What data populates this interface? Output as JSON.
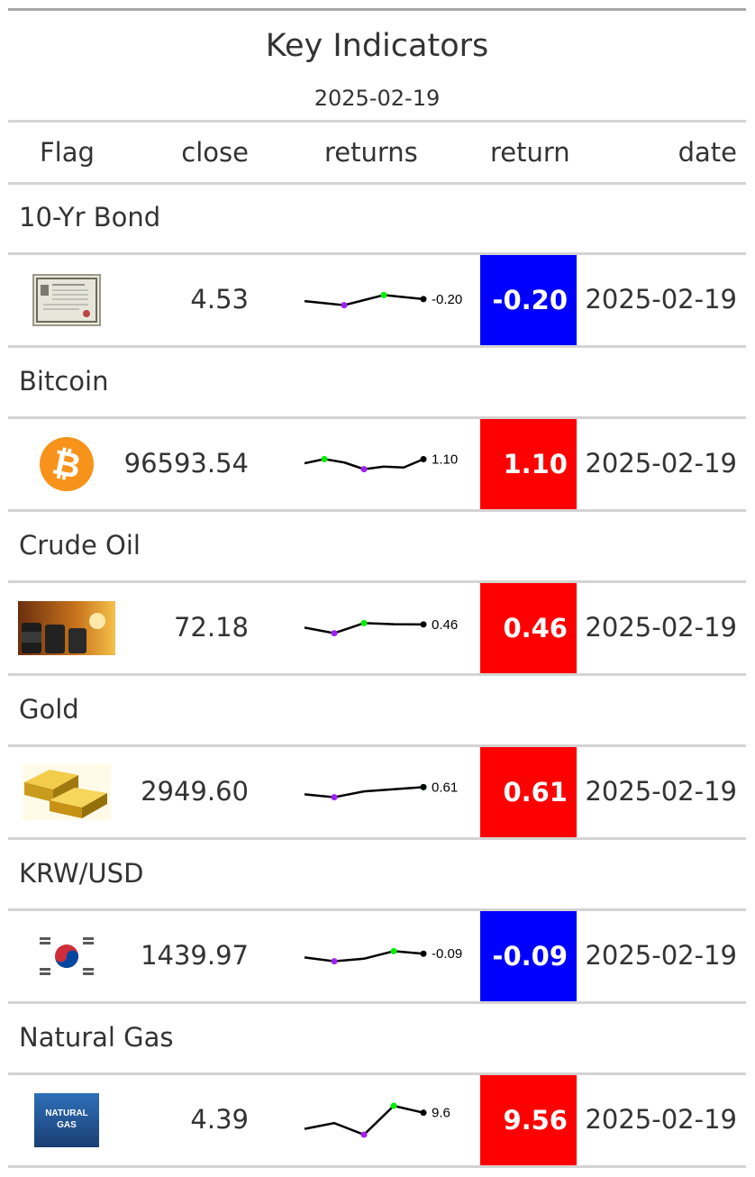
{
  "header": {
    "title": "Key Indicators",
    "subtitle": "2025-02-19"
  },
  "columns": [
    "Flag",
    "close",
    "returns",
    "return",
    "date"
  ],
  "colors": {
    "negative": "#0000ff",
    "positive": "#ff0000",
    "min_point": "#a020f0",
    "max_point": "#00ee00"
  },
  "groups": [
    {
      "label": "10-Yr Bond",
      "icon": "bond-certificate-icon",
      "close": "4.53",
      "spark": [
        4.52,
        4.5,
        4.55,
        4.53
      ],
      "spark_label": "-0.20",
      "return": "-0.20",
      "positive": false,
      "date": "2025-02-19"
    },
    {
      "label": "Bitcoin",
      "icon": "bitcoin-icon",
      "close": "96593.54",
      "spark": [
        96100,
        96600,
        96200,
        95400,
        95700,
        95600,
        96593
      ],
      "spark_label": "1.10",
      "return": "1.10",
      "positive": true,
      "date": "2025-02-19"
    },
    {
      "label": "Crude Oil",
      "icon": "oil-barrels-icon",
      "close": "72.18",
      "spark": [
        71.9,
        71.4,
        72.3,
        72.2,
        72.18
      ],
      "spark_label": "0.46",
      "return": "0.46",
      "positive": true,
      "date": "2025-02-19"
    },
    {
      "label": "Gold",
      "icon": "gold-bars-icon",
      "close": "2949.60",
      "spark": [
        2900,
        2880,
        2920,
        2935,
        2949.6
      ],
      "spark_label": "0.61",
      "return": "0.61",
      "positive": true,
      "date": "2025-02-19"
    },
    {
      "label": "KRW/USD",
      "icon": "korea-flag-icon",
      "close": "1439.97",
      "spark": [
        1437,
        1434,
        1436,
        1442,
        1439.97
      ],
      "spark_label": "-0.09",
      "return": "-0.09",
      "positive": false,
      "date": "2025-02-19"
    },
    {
      "label": "Natural Gas",
      "icon": "natural-gas-icon",
      "close": "4.39",
      "spark": [
        4.25,
        4.3,
        4.2,
        4.45,
        4.39
      ],
      "spark_label": "9.6",
      "return": "9.56",
      "positive": true,
      "date": "2025-02-19",
      "flag_text_1": "NATURAL",
      "flag_text_2": "GAS"
    }
  ]
}
